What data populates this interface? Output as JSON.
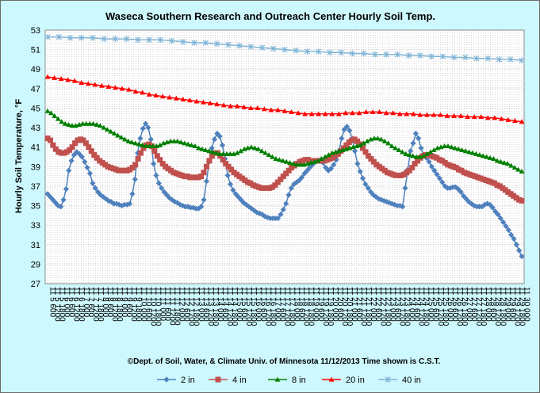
{
  "chart_data": {
    "type": "line",
    "title": "Waseca Southern Research and Outreach Center   Hourly Soil Temp.",
    "ylabel": "Hourly Soil Temperature, °F",
    "footer": "©Dept. of Soil, Water, & Climate   Univ. of Minnesota  11/12/2013    Time shown is C.S.T.",
    "ylim": [
      27,
      53
    ],
    "yticks": [
      27,
      29,
      31,
      33,
      35,
      37,
      39,
      41,
      43,
      45,
      47,
      49,
      51,
      53
    ],
    "grid": true,
    "legend_position": "bottom",
    "x_tick_labels": [
      "11 5 600",
      "11 5 1200",
      "11 5 1800",
      "11 6 000",
      "11 6 600",
      "11 6 1200",
      "11 6 1800",
      "11 7 000",
      "11 7 600",
      "11 7 1200",
      "11 7 1800",
      "11 8 000",
      "11 8 600",
      "11 8 1200",
      "11 8 1800",
      "11 9 000",
      "11 9 600",
      "11 9 1200",
      "11 9 1800",
      "11 10 000",
      "11 10 600",
      "11 10 1200",
      "11 10 1800",
      "11 11 000",
      "11 11 600",
      "11 11 1200",
      "11 11 1800",
      "11 12 000",
      "11 12 600",
      "11 12 1200",
      "11 12 1800",
      "11 13 000",
      "11 13 600",
      "11 13 1200",
      "11 13 1800",
      "11 14 000",
      "11 14 600",
      "11 14 1200",
      "11 14 1800",
      "11 15 000",
      "11 15 600",
      "11 15 1200",
      "11 15 1800",
      "11 16 000",
      "11 16 600",
      "11 16 1200",
      "11 16 1800",
      "11 17 000",
      "11 17 600",
      "11 17 1200",
      "11 17 1800",
      "11 18 000",
      "11 18 600",
      "11 18 1200",
      "11 18 1800",
      "11 19 000",
      "11 19 600",
      "11 19 1200",
      "11 19 1800",
      "11 20 000",
      "11 20 600",
      "11 20 1200",
      "11 20 1800",
      "11 21 000",
      "11 21 600",
      "11 21 1200",
      "11 21 1800",
      "11 22 000",
      "11 22 600",
      "11 22 1200",
      "11 22 1800",
      "11 23 000",
      "11 23 600",
      "11 23 1200",
      "11 23 1800",
      "11 24 000",
      "11 24 600",
      "11 24 1200",
      "11 24 1800",
      "11 25 000",
      "11 25 600",
      "11 25 1200",
      "11 25 1800",
      "11 26 000",
      "11 26 600",
      "11 26 1200",
      "11 26 1800",
      "11 27 000",
      "11 27 600",
      "11 27 1200",
      "11 27 1800",
      "11 28 000",
      "11 28 600",
      "11 28 1200",
      "11 28 1800",
      "11 29 000",
      "11 29 600",
      "11 29 1200",
      "11 29 1800",
      "11 30 000"
    ],
    "series": [
      {
        "name": "2 in",
        "color": "#4f81bd",
        "marker": "diamond",
        "values": [
          36.2,
          35.9,
          35.6,
          35.3,
          35.0,
          34.9,
          35.6,
          36.7,
          38.6,
          39.6,
          40.2,
          40.5,
          40.3,
          40.0,
          39.5,
          38.9,
          38.3,
          37.3,
          36.8,
          36.4,
          36.1,
          35.9,
          35.7,
          35.5,
          35.4,
          35.2,
          35.2,
          35.1,
          35.0,
          35.1,
          35.1,
          35.2,
          36.2,
          37.7,
          40.4,
          41.9,
          42.9,
          43.4,
          43.0,
          41.8,
          39.3,
          38.1,
          37.3,
          36.8,
          36.4,
          36.1,
          35.8,
          35.6,
          35.4,
          35.3,
          35.1,
          35.0,
          34.9,
          34.9,
          34.8,
          34.8,
          34.7,
          34.7,
          34.9,
          35.6,
          37.5,
          39.5,
          40.9,
          41.8,
          42.4,
          42.1,
          41.2,
          39.8,
          38.1,
          37.2,
          36.6,
          36.2,
          35.9,
          35.6,
          35.3,
          35.1,
          34.9,
          34.7,
          34.5,
          34.3,
          34.2,
          34.1,
          33.9,
          33.8,
          33.7,
          33.7,
          33.7,
          33.7,
          34.1,
          34.6,
          35.2,
          36.1,
          36.8,
          37.2,
          37.4,
          37.6,
          37.9,
          38.3,
          38.6,
          38.9,
          39.2,
          39.5,
          39.6,
          39.7,
          39.4,
          38.9,
          38.6,
          38.8,
          39.2,
          39.7,
          40.6,
          41.9,
          42.8,
          43.1,
          42.7,
          41.9,
          40.6,
          39.3,
          38.5,
          37.8,
          37.2,
          36.8,
          36.4,
          36.1,
          35.9,
          35.7,
          35.6,
          35.5,
          35.4,
          35.3,
          35.2,
          35.1,
          35.0,
          35.0,
          34.9,
          36.8,
          38.7,
          40.6,
          41.4,
          42.4,
          41.9,
          40.9,
          40.2,
          39.9,
          39.5,
          39.0,
          38.6,
          38.2,
          37.8,
          37.4,
          37.0,
          36.8,
          36.8,
          36.9,
          36.9,
          36.7,
          36.4,
          36.0,
          35.7,
          35.4,
          35.2,
          35.0,
          34.9,
          34.9,
          34.9,
          35.1,
          35.2,
          35.1,
          34.8,
          34.4,
          34.1,
          33.7,
          33.3,
          32.9,
          32.5,
          32.0,
          31.6,
          31.0,
          30.4,
          29.8
        ]
      },
      {
        "name": "4 in",
        "color": "#c0504d",
        "marker": "square",
        "values": [
          41.9,
          41.7,
          41.2,
          40.8,
          40.5,
          40.4,
          40.4,
          40.5,
          40.7,
          41.0,
          41.4,
          41.7,
          41.8,
          41.7,
          41.4,
          41.0,
          40.6,
          40.2,
          39.9,
          39.6,
          39.4,
          39.2,
          39.0,
          38.9,
          38.8,
          38.7,
          38.6,
          38.6,
          38.6,
          38.6,
          38.7,
          38.9,
          39.2,
          39.8,
          40.4,
          40.9,
          41.2,
          41.3,
          41.1,
          40.6,
          40.1,
          39.7,
          39.3,
          39.0,
          38.8,
          38.6,
          38.4,
          38.3,
          38.2,
          38.1,
          38.0,
          38.0,
          37.9,
          37.9,
          37.9,
          37.9,
          38.0,
          38.4,
          39.0,
          39.6,
          40.1,
          40.4,
          40.4,
          40.1,
          39.7,
          39.3,
          39.0,
          38.7,
          38.4,
          38.2,
          38.0,
          37.8,
          37.6,
          37.4,
          37.3,
          37.1,
          37.0,
          36.9,
          36.8,
          36.8,
          36.8,
          36.8,
          36.9,
          37.1,
          37.4,
          37.7,
          38.0,
          38.3,
          38.6,
          38.9,
          39.1,
          39.3,
          39.5,
          39.6,
          39.7,
          39.7,
          39.6,
          39.6,
          39.6,
          39.6,
          39.6,
          39.6,
          39.7,
          39.8,
          39.9,
          40.1,
          40.3,
          40.6,
          40.9,
          41.2,
          41.5,
          41.7,
          41.8,
          41.6,
          41.3,
          40.9,
          40.5,
          40.1,
          39.8,
          39.5,
          39.2,
          39.0,
          38.8,
          38.6,
          38.4,
          38.3,
          38.2,
          38.1,
          38.1,
          38.1,
          38.2,
          38.4,
          38.6,
          38.9,
          39.3,
          39.6,
          39.9,
          40.1,
          40.2,
          40.2,
          40.1,
          40.0,
          39.9,
          39.7,
          39.6,
          39.4,
          39.2,
          39.1,
          39.0,
          38.9,
          38.7,
          38.6,
          38.4,
          38.3,
          38.2,
          38.1,
          38.0,
          37.9,
          37.8,
          37.7,
          37.6,
          37.5,
          37.4,
          37.3,
          37.1,
          37.0,
          36.8,
          36.6,
          36.4,
          36.2,
          36.0,
          35.8,
          35.6,
          35.5
        ]
      },
      {
        "name": "8 in",
        "color": "#008000",
        "marker": "triangle",
        "values": [
          44.7,
          44.5,
          44.2,
          43.9,
          43.6,
          43.4,
          43.3,
          43.2,
          43.2,
          43.3,
          43.4,
          43.4,
          43.4,
          43.4,
          43.3,
          43.2,
          43.0,
          42.8,
          42.6,
          42.4,
          42.2,
          42.0,
          41.8,
          41.6,
          41.5,
          41.4,
          41.3,
          41.2,
          41.1,
          41.1,
          41.1,
          41.1,
          41.2,
          41.4,
          41.5,
          41.6,
          41.6,
          41.6,
          41.5,
          41.4,
          41.3,
          41.2,
          41.1,
          40.9,
          40.8,
          40.7,
          40.6,
          40.5,
          40.4,
          40.3,
          40.3,
          40.3,
          40.3,
          40.3,
          40.4,
          40.6,
          40.8,
          40.9,
          41.0,
          40.9,
          40.8,
          40.6,
          40.4,
          40.2,
          40.0,
          39.8,
          39.7,
          39.6,
          39.5,
          39.4,
          39.3,
          39.2,
          39.2,
          39.2,
          39.3,
          39.4,
          39.5,
          39.6,
          39.8,
          40.0,
          40.2,
          40.4,
          40.5,
          40.6,
          40.7,
          40.8,
          40.9,
          41.0,
          41.1,
          41.2,
          41.4,
          41.6,
          41.8,
          41.9,
          41.9,
          41.8,
          41.6,
          41.4,
          41.1,
          40.9,
          40.7,
          40.5,
          40.3,
          40.2,
          40.1,
          40.0,
          40.0,
          40.1,
          40.3,
          40.5,
          40.7,
          40.9,
          41.0,
          41.1,
          41.1,
          41.0,
          40.9,
          40.8,
          40.7,
          40.6,
          40.5,
          40.4,
          40.3,
          40.2,
          40.1,
          40.0,
          39.9,
          39.8,
          39.6,
          39.5,
          39.4,
          39.3,
          39.1,
          38.9,
          38.7,
          38.5
        ]
      },
      {
        "name": "20 in",
        "color": "#ff0000",
        "marker": "triangle",
        "values": [
          48.2,
          48.1,
          48.0,
          47.9,
          47.8,
          47.6,
          47.5,
          47.4,
          47.3,
          47.2,
          47.1,
          47.0,
          46.9,
          46.7,
          46.6,
          46.4,
          46.3,
          46.2,
          46.1,
          46.0,
          45.9,
          45.8,
          45.7,
          45.6,
          45.5,
          45.4,
          45.3,
          45.2,
          45.2,
          45.1,
          45.0,
          45.0,
          44.9,
          44.8,
          44.8,
          44.7,
          44.6,
          44.5,
          44.4,
          44.4,
          44.4,
          44.4,
          44.4,
          44.4,
          44.5,
          44.5,
          44.5,
          44.6,
          44.6,
          44.6,
          44.5,
          44.5,
          44.4,
          44.4,
          44.4,
          44.3,
          44.3,
          44.3,
          44.3,
          44.2,
          44.2,
          44.2,
          44.1,
          44.1,
          44.1,
          44.0,
          44.0,
          43.9,
          43.8,
          43.7,
          43.6
        ]
      },
      {
        "name": "40 in",
        "color": "#7fb4d6",
        "marker": "star",
        "values": [
          52.3,
          52.3,
          52.2,
          52.2,
          52.2,
          52.1,
          52.1,
          52.1,
          52.0,
          52.0,
          52.0,
          51.9,
          51.8,
          51.7,
          51.7,
          51.6,
          51.5,
          51.4,
          51.3,
          51.2,
          51.1,
          51.0,
          50.9,
          50.8,
          50.8,
          50.7,
          50.7,
          50.6,
          50.6,
          50.5,
          50.5,
          50.5,
          50.4,
          50.4,
          50.3,
          50.3,
          50.2,
          50.2,
          50.1,
          50.1,
          50.0,
          50.0,
          49.9
        ]
      }
    ]
  }
}
